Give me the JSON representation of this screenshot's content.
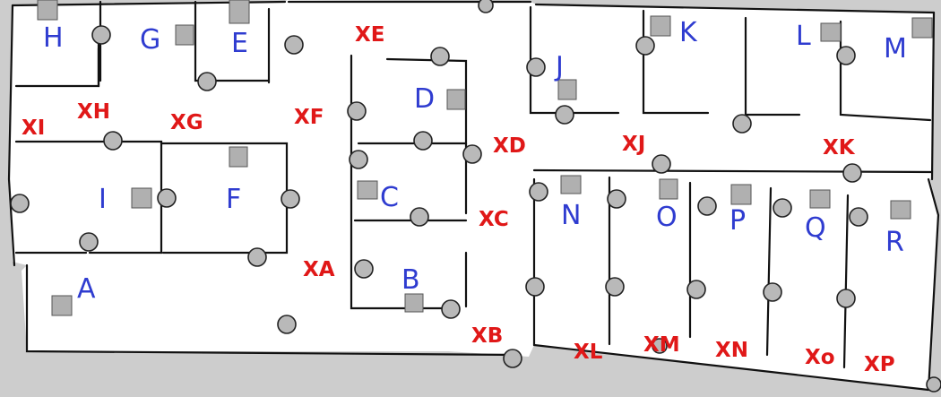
{
  "map": {
    "background_color": "#cdcdcd",
    "floor_color": "#ffffff",
    "room_label_color": "#2f3cd0",
    "corridor_label_color": "#e01818",
    "rooms": [
      "H",
      "G",
      "E",
      "J",
      "K",
      "L",
      "M",
      "D",
      "C",
      "B",
      "I",
      "F",
      "A",
      "N",
      "O",
      "P",
      "Q",
      "R"
    ],
    "corridors": [
      "XE",
      "XI",
      "XH",
      "XG",
      "XF",
      "XD",
      "XJ",
      "XK",
      "XC",
      "XA",
      "XB",
      "XL",
      "XM",
      "XN",
      "Xo",
      "XP"
    ]
  }
}
